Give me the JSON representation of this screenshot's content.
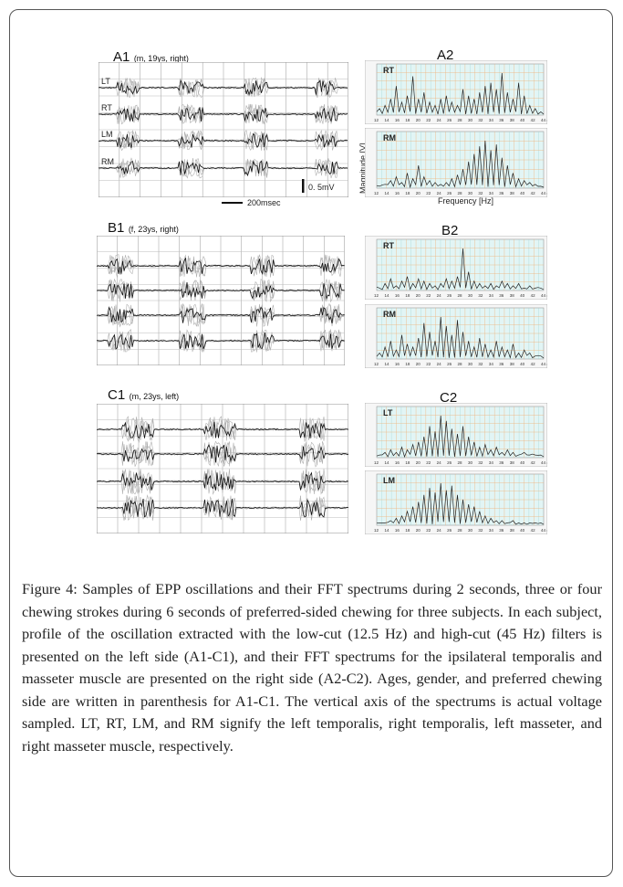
{
  "figure": {
    "panels": {
      "A1": {
        "label": "A1",
        "info": "(m, 19ys, right)",
        "channels": [
          "LT",
          "RT",
          "LM",
          "RM"
        ],
        "scale_voltage": "0. 5mV",
        "scale_time": "200msec"
      },
      "B1": {
        "label": "B1",
        "info": "(f, 23ys, right)"
      },
      "C1": {
        "label": "C1",
        "info": "(m, 23ys, left)"
      },
      "A2": {
        "label": "A2",
        "muscles": [
          "RT",
          "RM"
        ],
        "ylabel": "Magnitude [V]",
        "xlabel": "Frequency  [Hz]"
      },
      "B2": {
        "label": "B2",
        "muscles": [
          "RT",
          "RM"
        ]
      },
      "C2": {
        "label": "C2",
        "muscles": [
          "LT",
          "LM"
        ]
      }
    },
    "freq_ticks": [
      "12",
      "14",
      "16",
      "18",
      "20",
      "22",
      "24",
      "26",
      "28",
      "30",
      "32",
      "34",
      "36",
      "38",
      "40",
      "42",
      "44 45"
    ]
  },
  "caption": "Figure 4: Samples of EPP oscillations and their FFT spectrums during 2 seconds, three or four chewing strokes during 6 seconds of preferred-sided chewing for three subjects. In each subject, profile of the oscillation extracted with the low-cut (12.5 Hz) and high-cut (45 Hz) filters is presented on the left side (A1-C1), and their FFT spectrums for the ipsilateral temporalis and masseter muscle are presented on the right side (A2-C2). Ages, gender, and preferred chewing side are written in parenthesis for A1-C1. The vertical axis of the spectrums is actual voltage sampled. LT, RT, LM, and RM signify the left temporalis, right temporalis, left masseter, and right masseter muscle, respectively.",
  "colors": {
    "grid_bg": "#e2f5f5",
    "grid_line": "#a8d8d8",
    "grid_orange": "#f0b27a",
    "trace_black": "#111111",
    "trace_gray": "#a8a8a8"
  }
}
